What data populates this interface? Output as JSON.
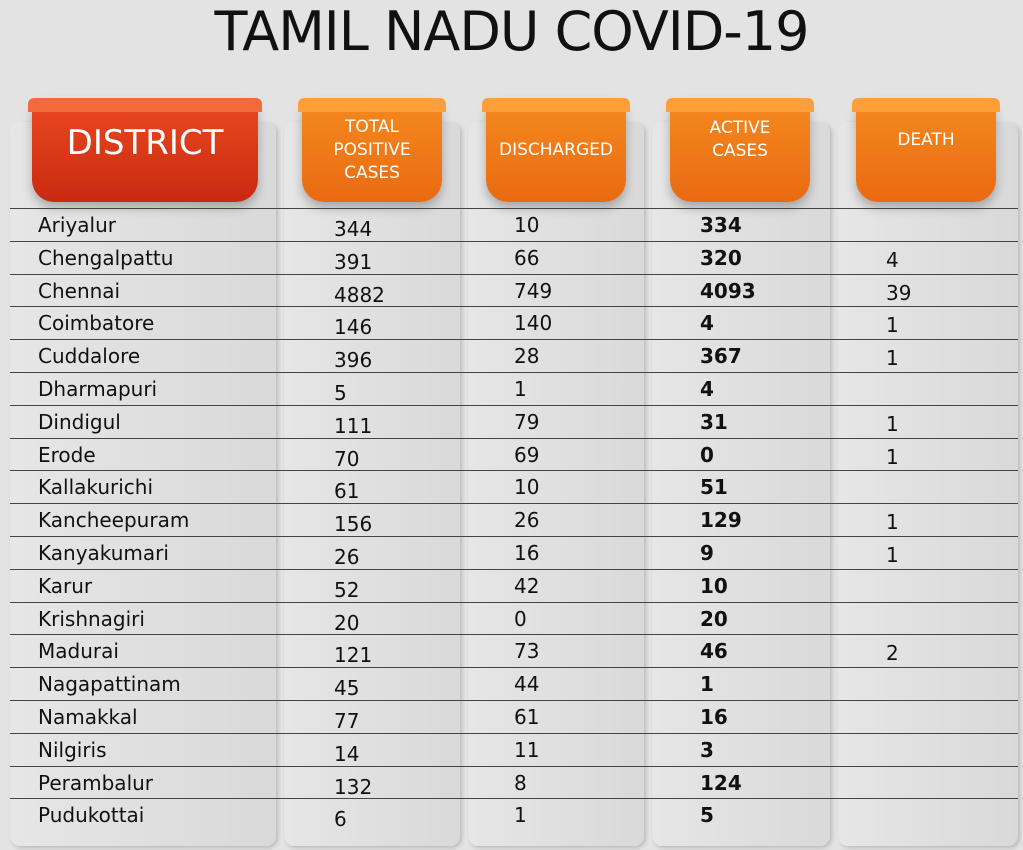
{
  "title": "TAMIL NADU COVID-19",
  "headers": {
    "district": "DISTRICT",
    "total": "TOTAL POSITIVE CASES",
    "discharged": "DISCHARGED",
    "active": "ACTIVE CASES",
    "death": "DEATH"
  },
  "colors": {
    "district_header": "#d9371a",
    "column_header": "#f07a1a",
    "panel": "#dcdcdc"
  },
  "rows": [
    {
      "district": "Ariyalur",
      "total": "344",
      "discharged": "10",
      "active": "334",
      "death": ""
    },
    {
      "district": "Chengalpattu",
      "total": "391",
      "discharged": "66",
      "active": "320",
      "death": "4"
    },
    {
      "district": "Chennai",
      "total": "4882",
      "discharged": "749",
      "active": "4093",
      "death": "39"
    },
    {
      "district": "Coimbatore",
      "total": "146",
      "discharged": "140",
      "active": "4",
      "death": "1"
    },
    {
      "district": "Cuddalore",
      "total": "396",
      "discharged": "28",
      "active": "367",
      "death": "1"
    },
    {
      "district": "Dharmapuri",
      "total": "5",
      "discharged": "1",
      "active": "4",
      "death": ""
    },
    {
      "district": "Dindigul",
      "total": "111",
      "discharged": "79",
      "active": "31",
      "death": "1"
    },
    {
      "district": "Erode",
      "total": "70",
      "discharged": "69",
      "active": "0",
      "death": "1"
    },
    {
      "district": "Kallakurichi",
      "total": "61",
      "discharged": "10",
      "active": "51",
      "death": ""
    },
    {
      "district": "Kancheepuram",
      "total": "156",
      "discharged": "26",
      "active": "129",
      "death": "1"
    },
    {
      "district": "Kanyakumari",
      "total": "26",
      "discharged": "16",
      "active": "9",
      "death": "1"
    },
    {
      "district": "Karur",
      "total": "52",
      "discharged": "42",
      "active": "10",
      "death": ""
    },
    {
      "district": "Krishnagiri",
      "total": "20",
      "discharged": "0",
      "active": "20",
      "death": ""
    },
    {
      "district": "Madurai",
      "total": "121",
      "discharged": "73",
      "active": "46",
      "death": "2"
    },
    {
      "district": "Nagapattinam",
      "total": "45",
      "discharged": "44",
      "active": "1",
      "death": ""
    },
    {
      "district": "Namakkal",
      "total": "77",
      "discharged": "61",
      "active": "16",
      "death": ""
    },
    {
      "district": "Nilgiris",
      "total": "14",
      "discharged": "11",
      "active": "3",
      "death": ""
    },
    {
      "district": "Perambalur",
      "total": "132",
      "discharged": "8",
      "active": "124",
      "death": ""
    },
    {
      "district": "Pudukottai",
      "total": "6",
      "discharged": "1",
      "active": "5",
      "death": ""
    }
  ]
}
